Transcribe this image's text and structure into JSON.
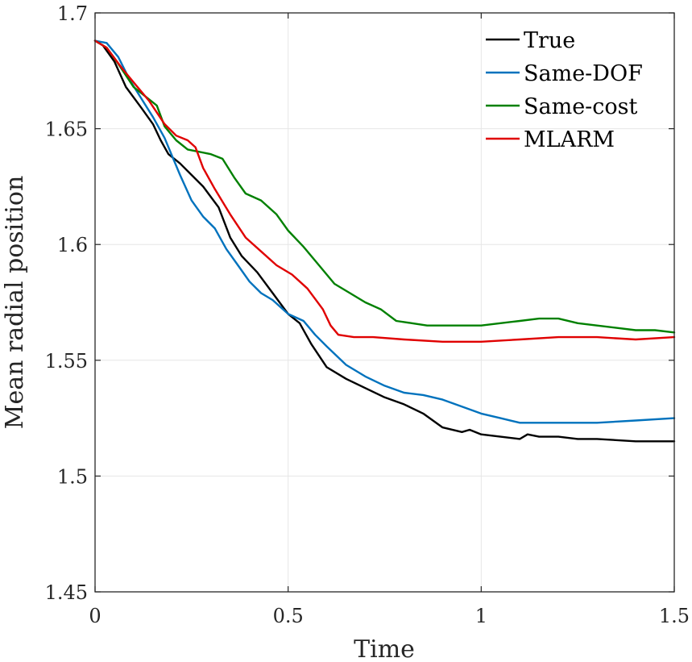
{
  "chart_data": {
    "type": "line",
    "title": "",
    "xlabel": "Time",
    "ylabel": "Mean radial position",
    "xlim": [
      0,
      1.5
    ],
    "ylim": [
      1.45,
      1.7
    ],
    "grid": true,
    "legend_position": "top-right",
    "x_ticks": [
      0,
      0.5,
      1,
      1.5
    ],
    "x_tick_labels": [
      "0",
      "0.5",
      "1",
      "1.5"
    ],
    "y_ticks": [
      1.45,
      1.5,
      1.55,
      1.6,
      1.65,
      1.7
    ],
    "y_tick_labels": [
      "1.45",
      "1.5",
      "1.55",
      "1.6",
      "1.65",
      "1.7"
    ],
    "series": [
      {
        "name": "True",
        "color": "#000000",
        "points": [
          [
            0,
            1.688
          ],
          [
            0.02,
            1.686
          ],
          [
            0.05,
            1.679
          ],
          [
            0.08,
            1.668
          ],
          [
            0.12,
            1.659
          ],
          [
            0.15,
            1.652
          ],
          [
            0.17,
            1.645
          ],
          [
            0.19,
            1.639
          ],
          [
            0.22,
            1.635
          ],
          [
            0.25,
            1.63
          ],
          [
            0.28,
            1.625
          ],
          [
            0.32,
            1.616
          ],
          [
            0.35,
            1.603
          ],
          [
            0.38,
            1.595
          ],
          [
            0.42,
            1.588
          ],
          [
            0.46,
            1.579
          ],
          [
            0.5,
            1.57
          ],
          [
            0.53,
            1.566
          ],
          [
            0.56,
            1.557
          ],
          [
            0.6,
            1.547
          ],
          [
            0.65,
            1.542
          ],
          [
            0.7,
            1.538
          ],
          [
            0.75,
            1.534
          ],
          [
            0.8,
            1.531
          ],
          [
            0.85,
            1.527
          ],
          [
            0.9,
            1.521
          ],
          [
            0.95,
            1.519
          ],
          [
            0.97,
            1.52
          ],
          [
            1.0,
            1.518
          ],
          [
            1.05,
            1.517
          ],
          [
            1.1,
            1.516
          ],
          [
            1.12,
            1.518
          ],
          [
            1.15,
            1.517
          ],
          [
            1.2,
            1.517
          ],
          [
            1.25,
            1.516
          ],
          [
            1.3,
            1.516
          ],
          [
            1.4,
            1.515
          ],
          [
            1.5,
            1.515
          ]
        ]
      },
      {
        "name": "Same-DOF",
        "color": "#0072BD",
        "points": [
          [
            0,
            1.688
          ],
          [
            0.03,
            1.687
          ],
          [
            0.06,
            1.681
          ],
          [
            0.09,
            1.671
          ],
          [
            0.12,
            1.663
          ],
          [
            0.15,
            1.655
          ],
          [
            0.18,
            1.646
          ],
          [
            0.2,
            1.638
          ],
          [
            0.22,
            1.63
          ],
          [
            0.25,
            1.619
          ],
          [
            0.28,
            1.612
          ],
          [
            0.31,
            1.607
          ],
          [
            0.34,
            1.598
          ],
          [
            0.37,
            1.591
          ],
          [
            0.4,
            1.584
          ],
          [
            0.43,
            1.579
          ],
          [
            0.46,
            1.576
          ],
          [
            0.5,
            1.57
          ],
          [
            0.54,
            1.567
          ],
          [
            0.57,
            1.561
          ],
          [
            0.6,
            1.556
          ],
          [
            0.65,
            1.548
          ],
          [
            0.7,
            1.543
          ],
          [
            0.75,
            1.539
          ],
          [
            0.8,
            1.536
          ],
          [
            0.85,
            1.535
          ],
          [
            0.9,
            1.533
          ],
          [
            0.95,
            1.53
          ],
          [
            1.0,
            1.527
          ],
          [
            1.05,
            1.525
          ],
          [
            1.1,
            1.523
          ],
          [
            1.15,
            1.523
          ],
          [
            1.2,
            1.523
          ],
          [
            1.3,
            1.523
          ],
          [
            1.4,
            1.524
          ],
          [
            1.5,
            1.525
          ]
        ]
      },
      {
        "name": "Same-cost",
        "color": "#008000",
        "points": [
          [
            0,
            1.688
          ],
          [
            0.03,
            1.685
          ],
          [
            0.06,
            1.678
          ],
          [
            0.1,
            1.668
          ],
          [
            0.13,
            1.664
          ],
          [
            0.16,
            1.66
          ],
          [
            0.18,
            1.651
          ],
          [
            0.21,
            1.645
          ],
          [
            0.24,
            1.641
          ],
          [
            0.27,
            1.64
          ],
          [
            0.3,
            1.639
          ],
          [
            0.33,
            1.637
          ],
          [
            0.36,
            1.629
          ],
          [
            0.39,
            1.622
          ],
          [
            0.43,
            1.619
          ],
          [
            0.47,
            1.613
          ],
          [
            0.5,
            1.606
          ],
          [
            0.54,
            1.599
          ],
          [
            0.58,
            1.591
          ],
          [
            0.62,
            1.583
          ],
          [
            0.66,
            1.579
          ],
          [
            0.7,
            1.575
          ],
          [
            0.74,
            1.572
          ],
          [
            0.78,
            1.567
          ],
          [
            0.82,
            1.566
          ],
          [
            0.86,
            1.565
          ],
          [
            0.9,
            1.565
          ],
          [
            0.95,
            1.565
          ],
          [
            1.0,
            1.565
          ],
          [
            1.05,
            1.566
          ],
          [
            1.1,
            1.567
          ],
          [
            1.15,
            1.568
          ],
          [
            1.2,
            1.568
          ],
          [
            1.25,
            1.566
          ],
          [
            1.3,
            1.565
          ],
          [
            1.35,
            1.564
          ],
          [
            1.4,
            1.563
          ],
          [
            1.45,
            1.563
          ],
          [
            1.5,
            1.562
          ]
        ]
      },
      {
        "name": "MLARM",
        "color": "#E00000",
        "points": [
          [
            0,
            1.688
          ],
          [
            0.03,
            1.685
          ],
          [
            0.07,
            1.676
          ],
          [
            0.1,
            1.67
          ],
          [
            0.14,
            1.662
          ],
          [
            0.18,
            1.652
          ],
          [
            0.21,
            1.647
          ],
          [
            0.24,
            1.645
          ],
          [
            0.26,
            1.642
          ],
          [
            0.28,
            1.633
          ],
          [
            0.31,
            1.624
          ],
          [
            0.35,
            1.613
          ],
          [
            0.39,
            1.603
          ],
          [
            0.43,
            1.597
          ],
          [
            0.47,
            1.591
          ],
          [
            0.51,
            1.587
          ],
          [
            0.55,
            1.581
          ],
          [
            0.59,
            1.572
          ],
          [
            0.61,
            1.565
          ],
          [
            0.63,
            1.561
          ],
          [
            0.67,
            1.56
          ],
          [
            0.72,
            1.56
          ],
          [
            0.8,
            1.559
          ],
          [
            0.9,
            1.558
          ],
          [
            1.0,
            1.558
          ],
          [
            1.1,
            1.559
          ],
          [
            1.2,
            1.56
          ],
          [
            1.3,
            1.56
          ],
          [
            1.4,
            1.559
          ],
          [
            1.5,
            1.56
          ]
        ]
      }
    ]
  }
}
